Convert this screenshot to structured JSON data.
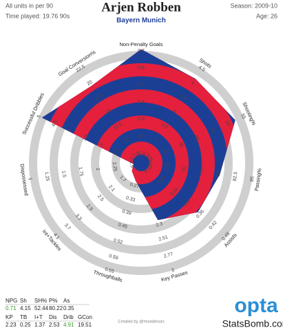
{
  "header": {
    "title": "Arjen Robben",
    "subtitle": "Bayern Munich",
    "units": "All units in per 90",
    "time_played": "Time played: 19.76 90s",
    "season": "Season: 2009-10",
    "age": "Age: 26"
  },
  "chart_data": {
    "type": "radar",
    "colors": [
      "#1c3f96",
      "#e4203c"
    ],
    "ring_color": "#cfcfcf",
    "highlight_color": "#3a9a2a",
    "axes": [
      {
        "name": "Non-Penalty Goals",
        "lim": [
          0.1,
          0.7
        ],
        "ticks": [
          0.1,
          0.2,
          0.3,
          0.4,
          0.5,
          0.6,
          0.7
        ],
        "value": 0.71,
        "highlight": true
      },
      {
        "name": "Shots",
        "lim": [
          1.5,
          4.5
        ],
        "ticks": [
          1.5,
          2,
          2.5,
          3,
          3.5,
          4,
          4.5
        ],
        "value": 4.15
      },
      {
        "name": "Shooting%",
        "lim": [
          25,
          55
        ],
        "ticks": [
          25,
          30,
          35,
          40,
          45,
          50,
          55
        ],
        "value": 52.44
      },
      {
        "name": "Passing%",
        "lim": [
          70,
          85
        ],
        "ticks": [
          70,
          72.5,
          75,
          77.5,
          80,
          82.5,
          85
        ],
        "value": 80.22
      },
      {
        "name": "Assists",
        "lim": [
          0.12,
          0.48
        ],
        "ticks": [
          0.12,
          0.18,
          0.24,
          0.3,
          0.36,
          0.42,
          0.48
        ],
        "value": 0.35
      },
      {
        "name": "Key Passes",
        "lim": [
          1.5,
          3
        ],
        "ticks": [
          2.3,
          2.51,
          2.77,
          3
        ],
        "value": 2.23
      },
      {
        "name": "Throughballs",
        "lim": [
          0.21,
          0.65
        ],
        "ticks": [
          0.27,
          0.33,
          0.39,
          0.45,
          0.52,
          0.59,
          0.65
        ],
        "value": 0.25
      },
      {
        "name": "Int+Tackles",
        "lim": [
          1.3,
          4.1
        ],
        "ticks": [
          1.7,
          2.1,
          2.5,
          2.9,
          3.3,
          3.7,
          4.1
        ],
        "value": 1.37
      },
      {
        "name": "Dispossessed",
        "lim": [
          2.5,
          1
        ],
        "ticks": [
          2.5,
          2.25,
          2,
          1.75,
          1.5,
          1.25,
          1
        ],
        "value": 2.53
      },
      {
        "name": "Successful Dribbles",
        "lim": [
          2,
          5
        ],
        "ticks": [
          2,
          2.5,
          3,
          3.5,
          4,
          4.5,
          5
        ],
        "value": 4.91,
        "highlight": true
      },
      {
        "name": "Goal Conversion%",
        "lim": [
          7.5,
          22.5
        ],
        "ticks": [
          7.5,
          10,
          12.5,
          15,
          17.5,
          20,
          22.5
        ],
        "value": 19.51
      }
    ]
  },
  "stats_table": {
    "rows": [
      [
        "NPG",
        "Sh",
        "SH%",
        "P%",
        "As"
      ],
      [
        "KP",
        "TB",
        "I+T",
        "Dis",
        "Drib",
        "GCon"
      ]
    ]
  },
  "footer": {
    "credit": "Created by @mixedknuts",
    "logo": "opta",
    "site": "StatsBomb.com"
  }
}
